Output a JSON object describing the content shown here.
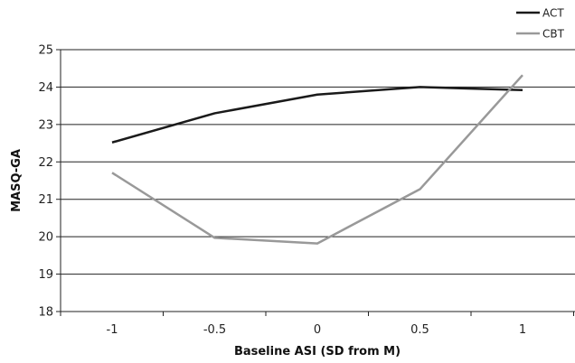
{
  "chart_data": {
    "type": "line",
    "xlabel": "Baseline ASI (SD from M)",
    "ylabel": "MASQ-GA",
    "categories": [
      "-1",
      "-0.5",
      "0",
      "0.5",
      "1"
    ],
    "ylim": [
      18,
      25
    ],
    "yticks": [
      "18",
      "19",
      "20",
      "21",
      "22",
      "23",
      "24",
      "25"
    ],
    "grid": "horizontal",
    "legend_position": "top-right",
    "series": [
      {
        "name": "ACT",
        "color": "#1a1a1a",
        "values": [
          22.52,
          23.3,
          23.8,
          24.0,
          23.92
        ]
      },
      {
        "name": "CBT",
        "color": "#999999",
        "values": [
          21.71,
          19.97,
          19.82,
          21.27,
          24.32
        ]
      }
    ]
  }
}
